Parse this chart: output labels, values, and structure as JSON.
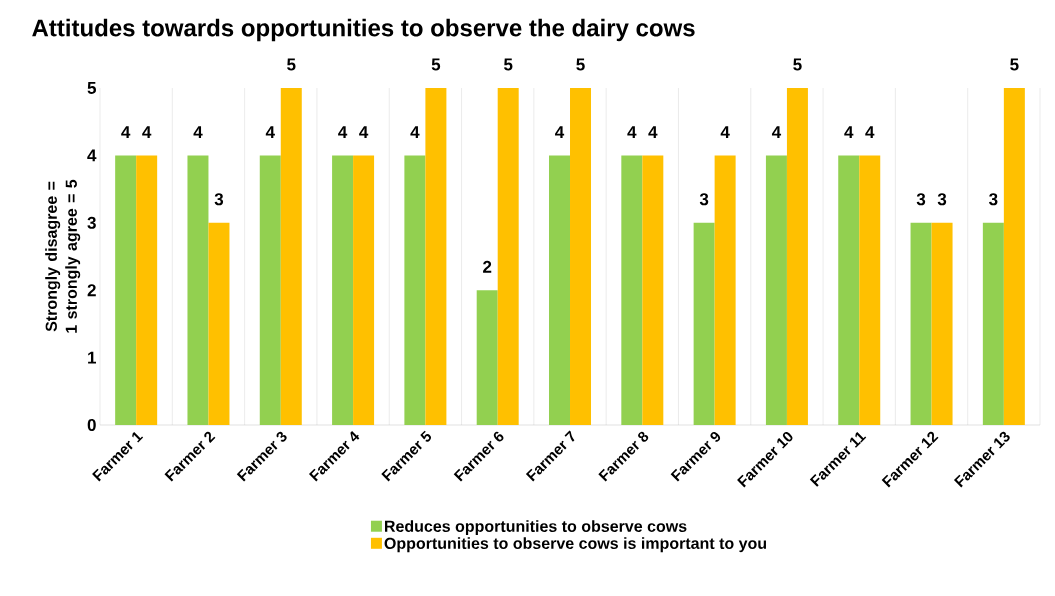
{
  "chart_data": {
    "type": "bar",
    "title": "Attitudes towards opportunities to observe the dairy cows",
    "ylabel": "Strongly disagree = 1 strongly agree = 5",
    "categories": [
      "Farmer 1",
      "Farmer 2",
      "Farmer 3",
      "Farmer 4",
      "Farmer 5",
      "Farmer 6",
      "Farmer 7",
      "Farmer 8",
      "Farmer 9",
      "Farmer 10",
      "Farmer 11",
      "Farmer 12",
      "Farmer 13"
    ],
    "series": [
      {
        "name": "Reduces opportunities to observe cows",
        "color": "#92d050",
        "values": [
          4,
          4,
          4,
          4,
          4,
          2,
          4,
          4,
          3,
          4,
          4,
          3,
          3
        ]
      },
      {
        "name": "Opportunities to observe cows is important to you",
        "color": "#ffc000",
        "values": [
          4,
          3,
          5,
          4,
          5,
          5,
          5,
          4,
          4,
          5,
          4,
          3,
          5
        ]
      }
    ],
    "ylim": [
      0,
      5
    ],
    "yticks": [
      0,
      1,
      2,
      3,
      4,
      5
    ],
    "grid": "x",
    "legend": "bottom",
    "data_labels": true
  }
}
